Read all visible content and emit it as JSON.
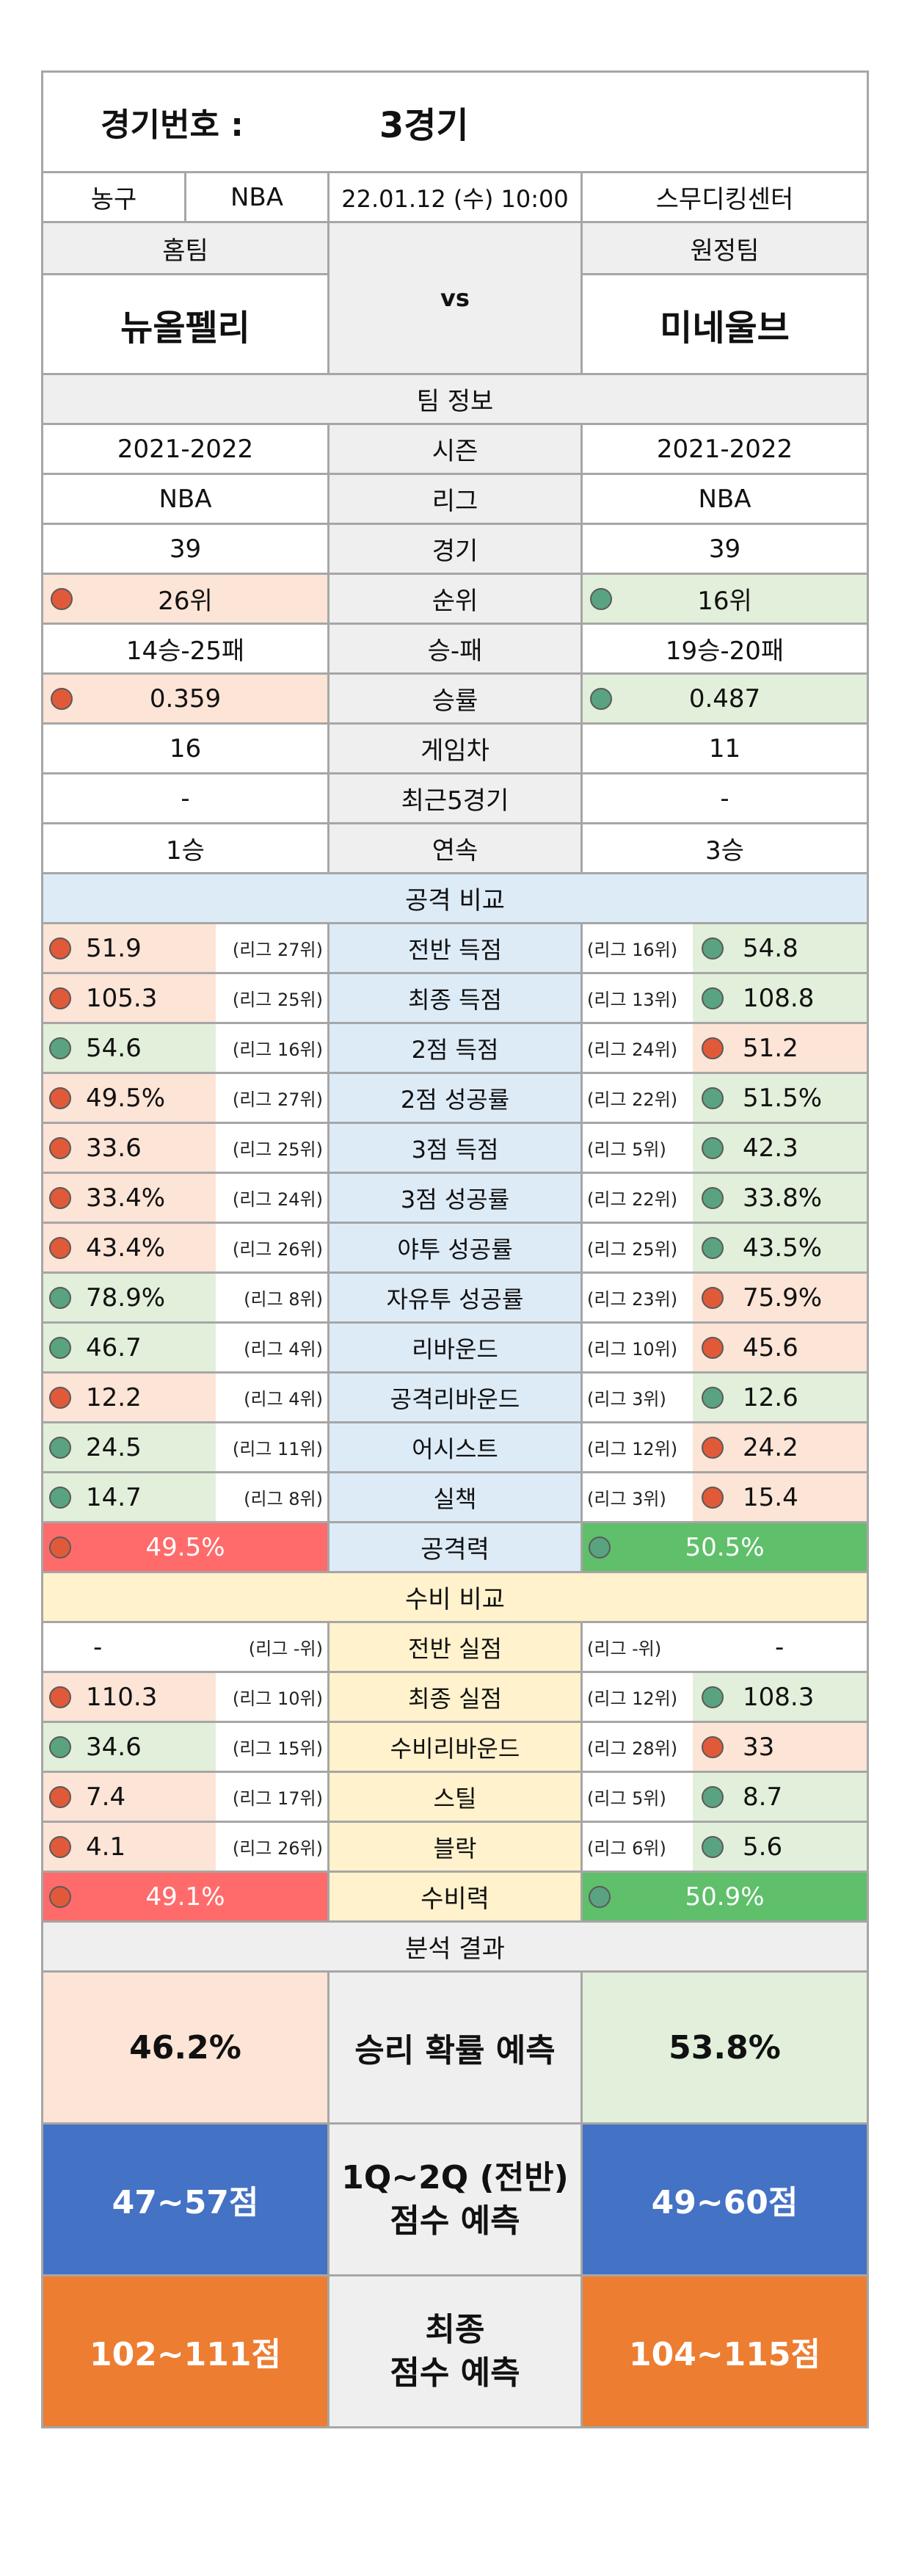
{
  "header": {
    "game_label": "경기번호 :",
    "game_value": "3경기",
    "sport": "농구",
    "league": "NBA",
    "datetime": "22.01.12 (수) 10:00",
    "venue": "스무디킹센터",
    "home_label": "홈팀",
    "away_label": "원정팀",
    "home_team": "뉴올펠리",
    "away_team": "미네울브",
    "vs": "vs"
  },
  "team_info": {
    "title": "팀 정보",
    "rows": [
      {
        "label": "시즌",
        "home": "2021-2022",
        "away": "2021-2022",
        "home_color": "",
        "away_color": ""
      },
      {
        "label": "리그",
        "home": "NBA",
        "away": "NBA",
        "home_color": "",
        "away_color": ""
      },
      {
        "label": "경기",
        "home": "39",
        "away": "39",
        "home_color": "",
        "away_color": ""
      },
      {
        "label": "순위",
        "home": "26위",
        "away": "16위",
        "home_color": "r",
        "away_color": "g"
      },
      {
        "label": "승-패",
        "home": "14승-25패",
        "away": "19승-20패",
        "home_color": "",
        "away_color": ""
      },
      {
        "label": "승률",
        "home": "0.359",
        "away": "0.487",
        "home_color": "r",
        "away_color": "g"
      },
      {
        "label": "게임차",
        "home": "16",
        "away": "11",
        "home_color": "",
        "away_color": ""
      },
      {
        "label": "최근5경기",
        "home": "-",
        "away": "-",
        "home_color": "",
        "away_color": ""
      },
      {
        "label": "연속",
        "home": "1승",
        "away": "3승",
        "home_color": "",
        "away_color": ""
      }
    ]
  },
  "offense": {
    "title": "공격 비교",
    "rows": [
      {
        "label": "전반 득점",
        "home": "51.9",
        "home_rank": "(리그 27위)",
        "away": "54.8",
        "away_rank": "(리그 16위)",
        "home_color": "r",
        "away_color": "g"
      },
      {
        "label": "최종 득점",
        "home": "105.3",
        "home_rank": "(리그 25위)",
        "away": "108.8",
        "away_rank": "(리그 13위)",
        "home_color": "r",
        "away_color": "g"
      },
      {
        "label": "2점 득점",
        "home": "54.6",
        "home_rank": "(리그 16위)",
        "away": "51.2",
        "away_rank": "(리그 24위)",
        "home_color": "g",
        "away_color": "r"
      },
      {
        "label": "2점 성공률",
        "home": "49.5%",
        "home_rank": "(리그 27위)",
        "away": "51.5%",
        "away_rank": "(리그 22위)",
        "home_color": "r",
        "away_color": "g"
      },
      {
        "label": "3점 득점",
        "home": "33.6",
        "home_rank": "(리그 25위)",
        "away": "42.3",
        "away_rank": "(리그 5위)",
        "home_color": "r",
        "away_color": "g"
      },
      {
        "label": "3점 성공률",
        "home": "33.4%",
        "home_rank": "(리그 24위)",
        "away": "33.8%",
        "away_rank": "(리그 22위)",
        "home_color": "r",
        "away_color": "g"
      },
      {
        "label": "야투 성공률",
        "home": "43.4%",
        "home_rank": "(리그 26위)",
        "away": "43.5%",
        "away_rank": "(리그 25위)",
        "home_color": "r",
        "away_color": "g"
      },
      {
        "label": "자유투 성공률",
        "home": "78.9%",
        "home_rank": "(리그 8위)",
        "away": "75.9%",
        "away_rank": "(리그 23위)",
        "home_color": "g",
        "away_color": "r"
      },
      {
        "label": "리바운드",
        "home": "46.7",
        "home_rank": "(리그 4위)",
        "away": "45.6",
        "away_rank": "(리그 10위)",
        "home_color": "g",
        "away_color": "r"
      },
      {
        "label": "공격리바운드",
        "home": "12.2",
        "home_rank": "(리그 4위)",
        "away": "12.6",
        "away_rank": "(리그 3위)",
        "home_color": "r",
        "away_color": "g"
      },
      {
        "label": "어시스트",
        "home": "24.5",
        "home_rank": "(리그 11위)",
        "away": "24.2",
        "away_rank": "(리그 12위)",
        "home_color": "g",
        "away_color": "r"
      },
      {
        "label": "실책",
        "home": "14.7",
        "home_rank": "(리그 8위)",
        "away": "15.4",
        "away_rank": "(리그 3위)",
        "home_color": "g",
        "away_color": "r"
      }
    ],
    "power_label": "공격력",
    "home_power": "49.5%",
    "away_power": "50.5%"
  },
  "defense": {
    "title": "수비 비교",
    "rows": [
      {
        "label": "전반 실점",
        "home": "-",
        "home_rank": "(리그 -위)",
        "away": "-",
        "away_rank": "(리그 -위)",
        "home_color": "",
        "away_color": ""
      },
      {
        "label": "최종 실점",
        "home": "110.3",
        "home_rank": "(리그 10위)",
        "away": "108.3",
        "away_rank": "(리그 12위)",
        "home_color": "r",
        "away_color": "g"
      },
      {
        "label": "수비리바운드",
        "home": "34.6",
        "home_rank": "(리그 15위)",
        "away": "33",
        "away_rank": "(리그 28위)",
        "home_color": "g",
        "away_color": "r"
      },
      {
        "label": "스틸",
        "home": "7.4",
        "home_rank": "(리그 17위)",
        "away": "8.7",
        "away_rank": "(리그 5위)",
        "home_color": "r",
        "away_color": "g"
      },
      {
        "label": "블락",
        "home": "4.1",
        "home_rank": "(리그 26위)",
        "away": "5.6",
        "away_rank": "(리그 6위)",
        "home_color": "r",
        "away_color": "g"
      }
    ],
    "power_label": "수비력",
    "home_power": "49.1%",
    "away_power": "50.9%"
  },
  "analysis": {
    "title": "분석 결과",
    "win_label": "승리 확률 예측",
    "home_win": "46.2%",
    "away_win": "53.8%",
    "half_label_1": "1Q~2Q (전반)",
    "half_label_2": "점수 예측",
    "home_half": "47~57점",
    "away_half": "49~60점",
    "final_label_1": "최종",
    "final_label_2": "점수 예측",
    "home_final": "102~111점",
    "away_final": "104~115점"
  }
}
